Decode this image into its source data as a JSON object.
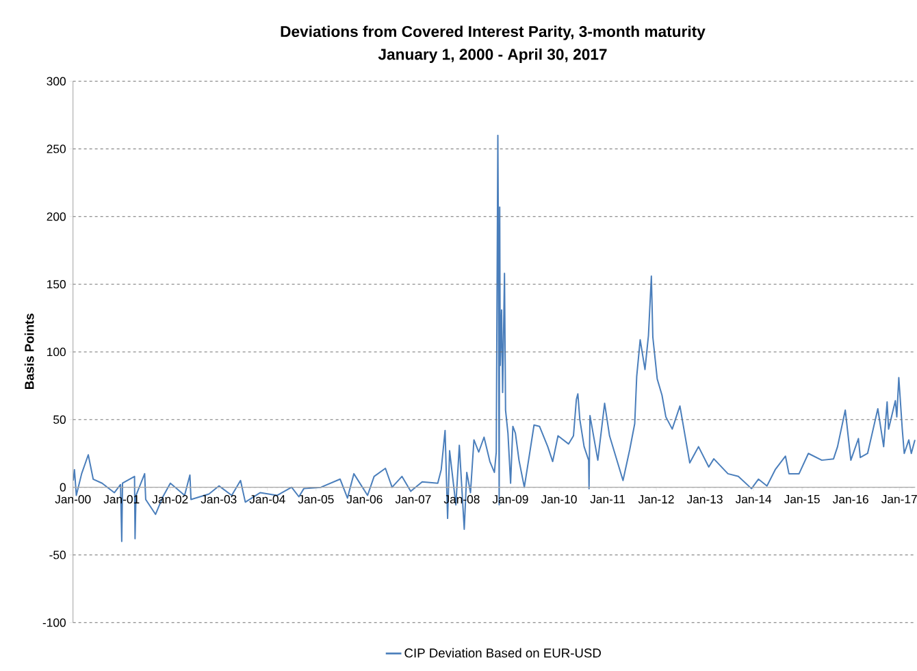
{
  "chart_data": {
    "type": "line",
    "title": "Deviations from Covered Interest Parity, 3-month maturity",
    "subtitle": "January 1, 2000 - April 30, 2017",
    "ylabel": "Basis Points",
    "xlim": [
      "2000-01-01",
      "2017-04-30"
    ],
    "xticks": [
      {
        "value": "2000-01-01",
        "label": "Jan-00"
      },
      {
        "value": "2001-01-01",
        "label": "Jan-01"
      },
      {
        "value": "2002-01-01",
        "label": "Jan-02"
      },
      {
        "value": "2003-01-01",
        "label": "Jan-03"
      },
      {
        "value": "2004-01-01",
        "label": "Jan-04"
      },
      {
        "value": "2005-01-01",
        "label": "Jan-05"
      },
      {
        "value": "2006-01-01",
        "label": "Jan-06"
      },
      {
        "value": "2007-01-01",
        "label": "Jan-07"
      },
      {
        "value": "2008-01-01",
        "label": "Jan-08"
      },
      {
        "value": "2009-01-01",
        "label": "Jan-09"
      },
      {
        "value": "2010-01-01",
        "label": "Jan-10"
      },
      {
        "value": "2011-01-01",
        "label": "Jan-11"
      },
      {
        "value": "2012-01-01",
        "label": "Jan-12"
      },
      {
        "value": "2013-01-01",
        "label": "Jan-13"
      },
      {
        "value": "2014-01-01",
        "label": "Jan-14"
      },
      {
        "value": "2015-01-01",
        "label": "Jan-15"
      },
      {
        "value": "2016-01-01",
        "label": "Jan-16"
      },
      {
        "value": "2017-01-01",
        "label": "Jan-17"
      }
    ],
    "ylim": [
      -100,
      300
    ],
    "yticks": [
      -100,
      -50,
      0,
      50,
      100,
      150,
      200,
      250,
      300
    ],
    "grid": "y",
    "legend": "bottom",
    "line_style": "solid",
    "x": [
      "2000-01-03",
      "2000-01-12",
      "2000-01-26",
      "2000-03-06",
      "2000-04-25",
      "2000-06-01",
      "2000-08-07",
      "2000-11-07",
      "2000-12-24",
      "2001-01-02",
      "2001-01-08",
      "2001-04-08",
      "2001-04-12",
      "2001-04-19",
      "2001-06-23",
      "2001-07-01",
      "2001-09-13",
      "2001-11-07",
      "2002-01-02",
      "2002-04-19",
      "2002-05-29",
      "2002-06-06",
      "2002-10-19",
      "2003-01-02",
      "2003-04-08",
      "2003-06-13",
      "2003-07-19",
      "2003-11-07",
      "2004-03-13",
      "2004-07-01",
      "2004-08-25",
      "2004-10-01",
      "2005-02-07",
      "2005-07-01",
      "2005-08-25",
      "2005-10-12",
      "2006-01-23",
      "2006-03-13",
      "2006-06-06",
      "2006-07-26",
      "2006-10-08",
      "2006-12-13",
      "2007-03-09",
      "2007-07-04",
      "2007-07-30",
      "2007-08-28",
      "2007-09-16",
      "2007-10-01",
      "2007-11-17",
      "2007-12-13",
      "2008-01-19",
      "2008-02-07",
      "2008-03-06",
      "2008-04-01",
      "2008-05-07",
      "2008-06-16",
      "2008-07-30",
      "2008-09-02",
      "2008-09-16",
      "2008-09-28",
      "2008-10-01",
      "2008-10-08",
      "2008-10-12",
      "2008-10-16",
      "2008-10-26",
      "2008-11-03",
      "2008-11-17",
      "2008-11-25",
      "2008-12-13",
      "2009-01-02",
      "2009-01-19",
      "2009-02-07",
      "2009-03-06",
      "2009-04-15",
      "2009-05-25",
      "2009-06-27",
      "2009-08-07",
      "2009-10-08",
      "2009-11-14",
      "2009-12-24",
      "2010-03-13",
      "2010-04-19",
      "2010-05-11",
      "2010-05-22",
      "2010-06-06",
      "2010-07-08",
      "2010-08-11",
      "2010-08-14",
      "2010-08-21",
      "2010-10-19",
      "2010-12-09",
      "2011-01-15",
      "2011-04-26",
      "2011-06-16",
      "2011-07-23",
      "2011-08-07",
      "2011-09-02",
      "2011-10-08",
      "2011-11-03",
      "2011-11-25",
      "2011-12-06",
      "2012-01-08",
      "2012-02-13",
      "2012-03-13",
      "2012-04-30",
      "2012-06-27",
      "2012-09-09",
      "2012-11-14",
      "2013-01-30",
      "2013-03-09",
      "2013-06-23",
      "2013-09-09",
      "2013-12-17",
      "2014-02-07",
      "2014-04-12",
      "2014-06-13",
      "2014-08-29",
      "2014-09-24",
      "2014-12-09",
      "2015-02-17",
      "2015-05-29",
      "2015-08-25",
      "2015-09-24",
      "2015-11-21",
      "2016-01-02",
      "2016-02-28",
      "2016-03-13",
      "2016-05-07",
      "2016-07-23",
      "2016-09-05",
      "2016-10-01",
      "2016-10-12",
      "2016-12-02",
      "2016-12-13",
      "2016-12-28",
      "2017-01-23",
      "2017-02-07",
      "2017-03-13",
      "2017-04-01",
      "2017-04-28"
    ],
    "series": [
      {
        "name": "CIP Deviation Based on EUR-USD",
        "color": "#4a7ebb",
        "values": [
          5,
          13,
          -6,
          10,
          24,
          6,
          3,
          -4,
          2,
          -40,
          3,
          8,
          -38,
          -6,
          10,
          -9,
          -20,
          -7,
          3,
          -6,
          9,
          -9,
          -5,
          1,
          -6,
          5,
          -11,
          -4,
          -6,
          0,
          -7,
          -1,
          0,
          6,
          -8,
          10,
          -6,
          8,
          14,
          0,
          8,
          -3,
          4,
          3,
          13,
          42,
          -23,
          27,
          -13,
          31,
          -31,
          11,
          -4,
          35,
          26,
          37,
          19,
          11,
          26,
          260,
          205,
          -13,
          207,
          90,
          131,
          70,
          158,
          57,
          40,
          3,
          45,
          40,
          20,
          0,
          25,
          46,
          45,
          30,
          19,
          38,
          32,
          38,
          65,
          69,
          50,
          30,
          20,
          -1,
          53,
          20,
          62,
          38,
          5,
          28,
          47,
          82,
          109,
          87,
          112,
          156,
          111,
          80,
          68,
          52,
          43,
          60,
          18,
          30,
          15,
          21,
          10,
          8,
          -1,
          6,
          1,
          13,
          23,
          10,
          10,
          25,
          20,
          21,
          30,
          57,
          20,
          36,
          22,
          25,
          58,
          30,
          63,
          43,
          64,
          52,
          81,
          43,
          25,
          35,
          25,
          35
        ]
      }
    ]
  }
}
